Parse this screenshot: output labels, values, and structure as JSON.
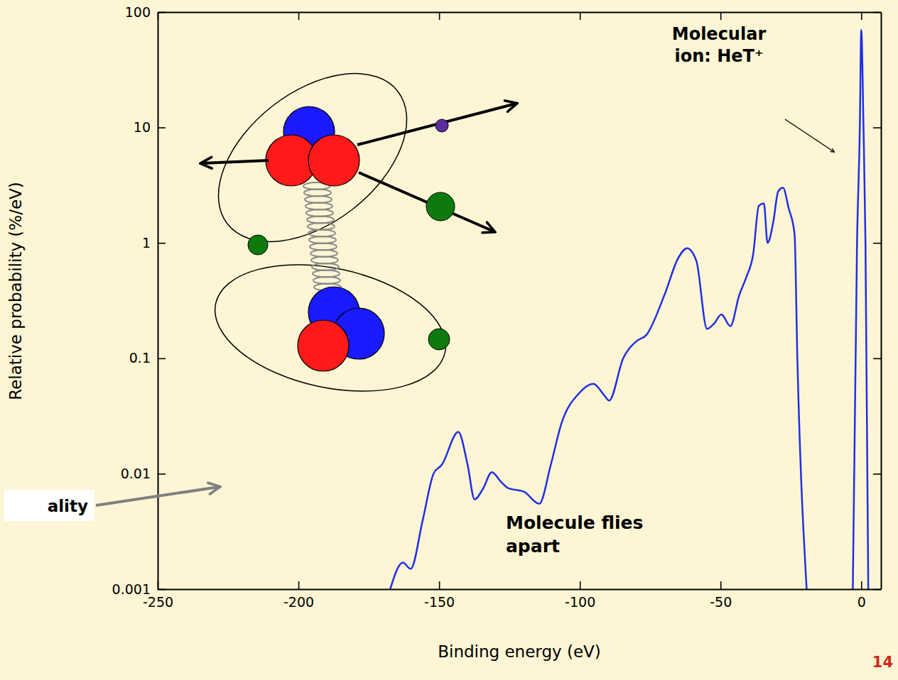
{
  "chart_data": {
    "type": "line",
    "x_label": "Binding energy (eV)",
    "y_label": "Relative probability (%/eV)",
    "x": [
      -167.4,
      -162.9,
      -160.1,
      -155.8,
      -152.0,
      -149.0,
      -143.2,
      -139.9,
      -137.4,
      -134.3,
      -131.3,
      -128.0,
      -125.5,
      -119.9,
      -114.4,
      -110.3,
      -106.6,
      -100.2,
      -95.2,
      -91.4,
      -89.6,
      -84.6,
      -80.0,
      -76.3,
      -70.0,
      -64.9,
      -61.9,
      -58.6,
      -54.8,
      -52.3,
      -49.7,
      -46.5,
      -43.4,
      -40.9,
      -38.4,
      -36.4,
      -34.6,
      -33.3,
      -31.3,
      -29.5,
      -27.8,
      -25.8,
      -23.7,
      -22.7,
      -19.4,
      -10,
      -3.0,
      -1.5,
      -0.5,
      0,
      0.8,
      1.5,
      2.5
    ],
    "values": [
      0.001,
      0.0017,
      0.0015,
      0.004,
      0.01,
      0.012,
      0.023,
      0.012,
      0.006,
      0.0075,
      0.0103,
      0.0085,
      0.0075,
      0.007,
      0.0055,
      0.012,
      0.027,
      0.05,
      0.06,
      0.048,
      0.043,
      0.1,
      0.14,
      0.16,
      0.35,
      0.75,
      0.9,
      0.7,
      0.18,
      0.2,
      0.24,
      0.19,
      0.35,
      0.5,
      0.8,
      2.1,
      2.2,
      1.0,
      1.5,
      2.8,
      3.0,
      2.0,
      1.2,
      0.1,
      0.001,
      null,
      0.001,
      1,
      10,
      70,
      10,
      1,
      0.001
    ],
    "color": "#1f2fe6",
    "xlim": [
      -250,
      7
    ],
    "ylim": [
      0.001,
      100
    ],
    "xticks": [
      -250,
      -200,
      -150,
      -100,
      -50,
      0
    ],
    "yticks": [
      0.001,
      0.01,
      0.1,
      1,
      10,
      100
    ],
    "log": "y",
    "annotations": [
      {
        "text": "Molecular ion: HeT⁺"
      },
      {
        "text": "Molecule flies apart"
      },
      {
        "text": "ality"
      },
      {
        "text": "14"
      }
    ]
  }
}
